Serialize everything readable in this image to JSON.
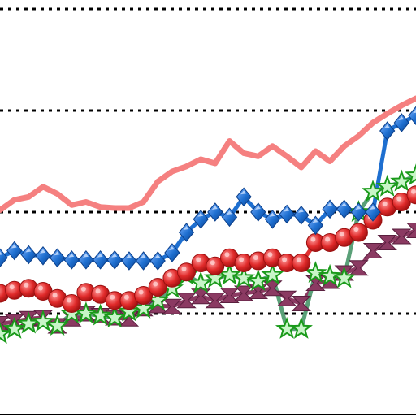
{
  "chart_data": {
    "type": "line",
    "title": "",
    "xlabel": "",
    "ylabel": "",
    "xlim": [
      0,
      29
    ],
    "ylim": [
      0,
      4
    ],
    "grid": "horizontal-dotted",
    "gridlines": [
      1,
      2,
      3,
      4
    ],
    "x": [
      0,
      1,
      2,
      3,
      4,
      5,
      6,
      7,
      8,
      9,
      10,
      11,
      12,
      13,
      14,
      15,
      16,
      17,
      18,
      19,
      20,
      21,
      22,
      23,
      24,
      25,
      26,
      27,
      28,
      29
    ],
    "series": [
      {
        "color": "#f58080",
        "marker": "none",
        "values": [
          2.02,
          2.12,
          2.15,
          2.25,
          2.18,
          2.07,
          2.1,
          2.05,
          2.04,
          2.04,
          2.1,
          2.3,
          2.4,
          2.45,
          2.52,
          2.48,
          2.7,
          2.58,
          2.55,
          2.65,
          2.55,
          2.44,
          2.6,
          2.5,
          2.65,
          2.75,
          2.88,
          2.97,
          3.05,
          3.12
        ]
      },
      {
        "color": "#1e6fd0",
        "marker": "diamond",
        "values": [
          1.55,
          1.62,
          1.58,
          1.57,
          1.55,
          1.53,
          1.53,
          1.53,
          1.53,
          1.52,
          1.52,
          1.52,
          1.6,
          1.8,
          1.93,
          2.0,
          1.95,
          2.15,
          2.0,
          1.93,
          1.98,
          1.97,
          1.87,
          2.03,
          2.03,
          2.0,
          2.0,
          2.8,
          2.88,
          2.95
        ]
      },
      {
        "color": "#e03030",
        "marker": "circle",
        "values": [
          1.2,
          1.23,
          1.25,
          1.22,
          1.15,
          1.1,
          1.21,
          1.19,
          1.13,
          1.13,
          1.18,
          1.26,
          1.35,
          1.41,
          1.5,
          1.47,
          1.55,
          1.5,
          1.52,
          1.55,
          1.5,
          1.5,
          1.7,
          1.7,
          1.75,
          1.8,
          1.92,
          2.05,
          2.1,
          2.17
        ]
      },
      {
        "color": "#8b3a62",
        "marker": "hourglass",
        "values": [
          0.9,
          0.92,
          0.95,
          0.96,
          0.88,
          0.95,
          1.0,
          0.98,
          0.96,
          0.95,
          1.05,
          1.08,
          1.07,
          1.13,
          1.17,
          1.13,
          1.18,
          1.2,
          1.22,
          1.25,
          1.15,
          1.1,
          1.3,
          1.32,
          1.4,
          1.45,
          1.62,
          1.7,
          1.76,
          1.82
        ]
      },
      {
        "color": "#5aa078",
        "marker": "star",
        "values": [
          0.8,
          0.85,
          0.9,
          0.92,
          0.88,
          1.0,
          1.0,
          0.98,
          0.96,
          1.02,
          1.05,
          1.13,
          1.25,
          1.38,
          1.3,
          1.35,
          1.38,
          1.35,
          1.32,
          1.38,
          0.85,
          0.85,
          1.4,
          1.37,
          1.35,
          2.0,
          2.2,
          2.25,
          2.3,
          2.36
        ]
      }
    ]
  }
}
